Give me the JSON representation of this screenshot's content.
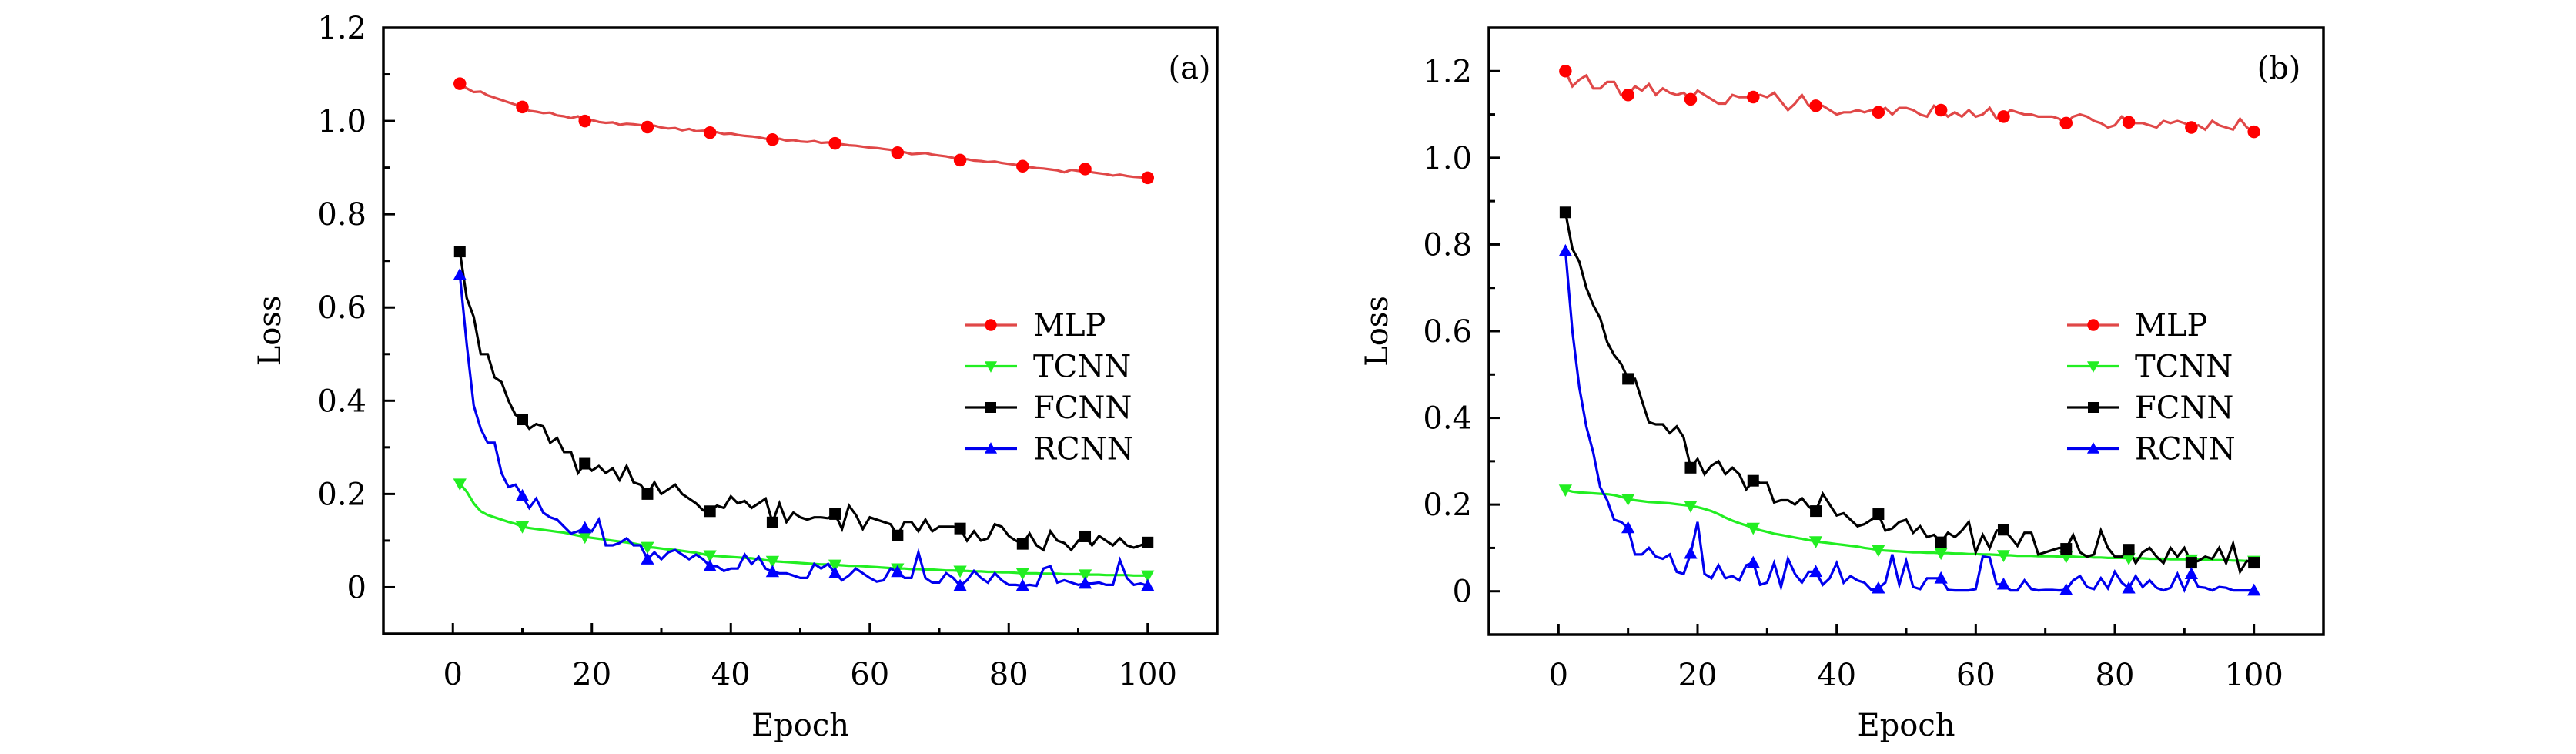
{
  "chart_data": [
    {
      "type": "line",
      "panel_label": "(a)",
      "title": "",
      "xlabel": "Epoch",
      "ylabel": "Loss",
      "xlim": [
        -10,
        110
      ],
      "ylim": [
        -0.1,
        1.2
      ],
      "xticks": [
        0,
        20,
        40,
        60,
        80,
        100
      ],
      "xtick_labels": [
        "0",
        "20",
        "40",
        "60",
        "80",
        "100"
      ],
      "xminor": [
        10,
        30,
        50,
        70,
        90
      ],
      "yticks": [
        0,
        0.2,
        0.4,
        0.6,
        0.8,
        1.0,
        1.2
      ],
      "ytick_labels": [
        "0",
        "0.2",
        "0.4",
        "0.6",
        "0.8",
        "1.0",
        "1.2"
      ],
      "yminor": [
        0.1,
        0.3,
        0.5,
        0.7,
        0.9,
        1.1
      ],
      "grid": false,
      "legend_position": "center-right",
      "marker_every": 9,
      "x_start": 1,
      "series": [
        {
          "name": "MLP",
          "line_color": "#e04848",
          "marker_color": "#ff0000",
          "marker": "circle",
          "values": [
            1.08,
            1.07,
            1.062,
            1.063,
            1.055,
            1.05,
            1.045,
            1.04,
            1.035,
            1.03,
            1.022,
            1.02,
            1.017,
            1.018,
            1.012,
            1.01,
            1.006,
            1.01,
            1.0,
            1.002,
            0.998,
            0.996,
            0.997,
            0.992,
            0.994,
            0.993,
            0.991,
            0.987,
            0.99,
            0.986,
            0.984,
            0.985,
            0.98,
            0.983,
            0.978,
            0.979,
            0.975,
            0.976,
            0.972,
            0.973,
            0.97,
            0.968,
            0.967,
            0.965,
            0.962,
            0.96,
            0.962,
            0.958,
            0.959,
            0.956,
            0.955,
            0.957,
            0.953,
            0.954,
            0.952,
            0.95,
            0.948,
            0.947,
            0.945,
            0.943,
            0.942,
            0.94,
            0.938,
            0.932,
            0.933,
            0.929,
            0.93,
            0.931,
            0.928,
            0.926,
            0.924,
            0.921,
            0.916,
            0.918,
            0.915,
            0.914,
            0.912,
            0.913,
            0.91,
            0.908,
            0.906,
            0.903,
            0.901,
            0.899,
            0.898,
            0.896,
            0.894,
            0.89,
            0.895,
            0.893,
            0.897,
            0.89,
            0.888,
            0.886,
            0.883,
            0.885,
            0.882,
            0.88,
            0.879,
            0.878
          ]
        },
        {
          "name": "TCNN",
          "line_color": "#22ee22",
          "marker_color": "#22ee22",
          "marker": "triangle-down",
          "values": [
            0.222,
            0.205,
            0.18,
            0.163,
            0.155,
            0.15,
            0.145,
            0.14,
            0.136,
            0.13,
            0.127,
            0.125,
            0.123,
            0.121,
            0.119,
            0.117,
            0.114,
            0.111,
            0.108,
            0.106,
            0.104,
            0.102,
            0.1,
            0.098,
            0.096,
            0.094,
            0.091,
            0.086,
            0.085,
            0.083,
            0.081,
            0.08,
            0.078,
            0.076,
            0.074,
            0.071,
            0.068,
            0.067,
            0.066,
            0.065,
            0.064,
            0.063,
            0.062,
            0.06,
            0.058,
            0.056,
            0.055,
            0.054,
            0.053,
            0.052,
            0.051,
            0.05,
            0.049,
            0.049,
            0.048,
            0.047,
            0.046,
            0.046,
            0.045,
            0.044,
            0.043,
            0.042,
            0.041,
            0.04,
            0.04,
            0.039,
            0.039,
            0.038,
            0.038,
            0.037,
            0.036,
            0.036,
            0.035,
            0.035,
            0.034,
            0.034,
            0.033,
            0.033,
            0.032,
            0.032,
            0.031,
            0.03,
            0.03,
            0.03,
            0.029,
            0.029,
            0.029,
            0.028,
            0.028,
            0.028,
            0.027,
            0.027,
            0.027,
            0.026,
            0.026,
            0.026,
            0.026,
            0.025,
            0.025,
            0.025
          ]
        },
        {
          "name": "FCNN",
          "line_color": "#000000",
          "marker_color": "#000000",
          "marker": "square",
          "values": [
            0.72,
            0.62,
            0.58,
            0.5,
            0.5,
            0.45,
            0.44,
            0.4,
            0.37,
            0.36,
            0.34,
            0.35,
            0.345,
            0.31,
            0.32,
            0.29,
            0.29,
            0.245,
            0.265,
            0.25,
            0.26,
            0.245,
            0.255,
            0.23,
            0.26,
            0.225,
            0.22,
            0.2,
            0.225,
            0.2,
            0.21,
            0.22,
            0.2,
            0.19,
            0.18,
            0.165,
            0.163,
            0.175,
            0.17,
            0.195,
            0.18,
            0.185,
            0.17,
            0.18,
            0.19,
            0.139,
            0.18,
            0.14,
            0.16,
            0.15,
            0.145,
            0.15,
            0.15,
            0.148,
            0.157,
            0.125,
            0.175,
            0.155,
            0.125,
            0.15,
            0.145,
            0.14,
            0.135,
            0.111,
            0.14,
            0.14,
            0.12,
            0.145,
            0.12,
            0.13,
            0.13,
            0.13,
            0.126,
            0.1,
            0.12,
            0.1,
            0.105,
            0.135,
            0.13,
            0.11,
            0.1,
            0.093,
            0.115,
            0.09,
            0.08,
            0.12,
            0.1,
            0.095,
            0.08,
            0.1,
            0.109,
            0.09,
            0.11,
            0.1,
            0.09,
            0.105,
            0.09,
            0.085,
            0.09,
            0.096
          ]
        },
        {
          "name": "RCNN",
          "line_color": "#0000ee",
          "marker_color": "#0000ff",
          "marker": "triangle-up",
          "values": [
            0.67,
            0.52,
            0.39,
            0.34,
            0.31,
            0.31,
            0.245,
            0.215,
            0.22,
            0.196,
            0.17,
            0.19,
            0.16,
            0.15,
            0.145,
            0.13,
            0.115,
            0.12,
            0.127,
            0.12,
            0.145,
            0.09,
            0.09,
            0.095,
            0.105,
            0.09,
            0.09,
            0.06,
            0.075,
            0.06,
            0.075,
            0.08,
            0.07,
            0.06,
            0.07,
            0.06,
            0.045,
            0.045,
            0.035,
            0.04,
            0.04,
            0.07,
            0.05,
            0.065,
            0.04,
            0.033,
            0.03,
            0.03,
            0.025,
            0.02,
            0.02,
            0.05,
            0.04,
            0.05,
            0.03,
            0.015,
            0.025,
            0.04,
            0.03,
            0.02,
            0.012,
            0.015,
            0.04,
            0.033,
            0.02,
            0.02,
            0.075,
            0.02,
            0.01,
            0.01,
            0.03,
            0.02,
            0.003,
            0.015,
            0.035,
            0.02,
            0.01,
            0.03,
            0.015,
            0.005,
            0.005,
            0.003,
            0.005,
            0.003,
            0.04,
            0.045,
            0.01,
            0.015,
            0.01,
            0.005,
            0.008,
            0.008,
            0.01,
            0.005,
            0.005,
            0.058,
            0.02,
            0.005,
            0.008,
            0.003
          ]
        }
      ]
    },
    {
      "type": "line",
      "panel_label": "(b)",
      "title": "",
      "xlabel": "Epoch",
      "ylabel": "Loss",
      "xlim": [
        -10,
        110
      ],
      "ylim": [
        -0.1,
        1.3
      ],
      "xticks": [
        0,
        20,
        40,
        60,
        80,
        100
      ],
      "xtick_labels": [
        "0",
        "20",
        "40",
        "60",
        "80",
        "100"
      ],
      "xminor": [
        10,
        30,
        50,
        70,
        90
      ],
      "yticks": [
        0,
        0.2,
        0.4,
        0.6,
        0.8,
        1.0,
        1.2
      ],
      "ytick_labels": [
        "0",
        "0.2",
        "0.4",
        "0.6",
        "0.8",
        "1.0",
        "1.2"
      ],
      "yminor": [
        0.1,
        0.3,
        0.5,
        0.7,
        0.9,
        1.1
      ],
      "grid": false,
      "legend_position": "center-right",
      "marker_every": 9,
      "x_start": 1,
      "series": [
        {
          "name": "MLP",
          "line_color": "#e04848",
          "marker_color": "#ff0000",
          "marker": "circle",
          "values": [
            1.2,
            1.165,
            1.18,
            1.19,
            1.16,
            1.16,
            1.175,
            1.175,
            1.145,
            1.145,
            1.165,
            1.155,
            1.17,
            1.145,
            1.16,
            1.15,
            1.145,
            1.15,
            1.135,
            1.155,
            1.145,
            1.135,
            1.125,
            1.125,
            1.145,
            1.14,
            1.14,
            1.14,
            1.145,
            1.14,
            1.15,
            1.13,
            1.11,
            1.125,
            1.145,
            1.12,
            1.12,
            1.12,
            1.11,
            1.1,
            1.105,
            1.105,
            1.11,
            1.105,
            1.11,
            1.105,
            1.115,
            1.1,
            1.115,
            1.115,
            1.11,
            1.1,
            1.095,
            1.12,
            1.11,
            1.095,
            1.105,
            1.095,
            1.11,
            1.095,
            1.1,
            1.115,
            1.09,
            1.095,
            1.11,
            1.105,
            1.1,
            1.1,
            1.095,
            1.095,
            1.095,
            1.09,
            1.08,
            1.095,
            1.1,
            1.095,
            1.085,
            1.08,
            1.07,
            1.075,
            1.095,
            1.082,
            1.08,
            1.08,
            1.075,
            1.07,
            1.085,
            1.08,
            1.085,
            1.08,
            1.07,
            1.075,
            1.065,
            1.085,
            1.075,
            1.07,
            1.065,
            1.09,
            1.07,
            1.06
          ]
        },
        {
          "name": "TCNN",
          "line_color": "#22ee22",
          "marker_color": "#22ee22",
          "marker": "triangle-down",
          "values": [
            0.234,
            0.23,
            0.228,
            0.227,
            0.226,
            0.225,
            0.224,
            0.222,
            0.218,
            0.213,
            0.21,
            0.208,
            0.206,
            0.205,
            0.204,
            0.203,
            0.201,
            0.199,
            0.197,
            0.194,
            0.19,
            0.185,
            0.178,
            0.17,
            0.163,
            0.157,
            0.152,
            0.146,
            0.141,
            0.137,
            0.133,
            0.13,
            0.127,
            0.124,
            0.121,
            0.118,
            0.115,
            0.113,
            0.111,
            0.109,
            0.107,
            0.105,
            0.103,
            0.1,
            0.098,
            0.095,
            0.094,
            0.093,
            0.092,
            0.091,
            0.09,
            0.09,
            0.089,
            0.089,
            0.088,
            0.088,
            0.087,
            0.087,
            0.086,
            0.086,
            0.085,
            0.085,
            0.084,
            0.083,
            0.083,
            0.082,
            0.082,
            0.082,
            0.081,
            0.081,
            0.081,
            0.08,
            0.08,
            0.08,
            0.079,
            0.079,
            0.078,
            0.078,
            0.077,
            0.077,
            0.077,
            0.076,
            0.076,
            0.076,
            0.075,
            0.075,
            0.075,
            0.074,
            0.074,
            0.074,
            0.073,
            0.073,
            0.073,
            0.072,
            0.072,
            0.072,
            0.071,
            0.071,
            0.07,
            0.07
          ]
        },
        {
          "name": "FCNN",
          "line_color": "#000000",
          "marker_color": "#000000",
          "marker": "square",
          "values": [
            0.874,
            0.79,
            0.76,
            0.7,
            0.66,
            0.63,
            0.575,
            0.545,
            0.525,
            0.49,
            0.49,
            0.44,
            0.39,
            0.385,
            0.385,
            0.365,
            0.38,
            0.355,
            0.285,
            0.305,
            0.27,
            0.29,
            0.3,
            0.27,
            0.285,
            0.27,
            0.235,
            0.255,
            0.25,
            0.25,
            0.205,
            0.21,
            0.21,
            0.2,
            0.215,
            0.195,
            0.185,
            0.225,
            0.2,
            0.175,
            0.18,
            0.165,
            0.15,
            0.155,
            0.165,
            0.178,
            0.14,
            0.145,
            0.16,
            0.165,
            0.135,
            0.15,
            0.125,
            0.13,
            0.113,
            0.135,
            0.125,
            0.14,
            0.16,
            0.09,
            0.13,
            0.1,
            0.14,
            0.142,
            0.125,
            0.105,
            0.135,
            0.135,
            0.085,
            0.09,
            0.095,
            0.1,
            0.098,
            0.13,
            0.09,
            0.08,
            0.085,
            0.14,
            0.1,
            0.08,
            0.08,
            0.096,
            0.065,
            0.09,
            0.1,
            0.08,
            0.065,
            0.1,
            0.08,
            0.1,
            0.066,
            0.07,
            0.08,
            0.075,
            0.1,
            0.065,
            0.11,
            0.045,
            0.07,
            0.066
          ]
        },
        {
          "name": "RCNN",
          "line_color": "#0000ee",
          "marker_color": "#0000ff",
          "marker": "triangle-up",
          "values": [
            0.785,
            0.6,
            0.47,
            0.38,
            0.32,
            0.24,
            0.21,
            0.165,
            0.16,
            0.146,
            0.085,
            0.085,
            0.1,
            0.08,
            0.075,
            0.085,
            0.045,
            0.04,
            0.087,
            0.16,
            0.04,
            0.03,
            0.06,
            0.03,
            0.035,
            0.025,
            0.06,
            0.066,
            0.015,
            0.02,
            0.065,
            0.01,
            0.075,
            0.04,
            0.02,
            0.045,
            0.045,
            0.015,
            0.03,
            0.065,
            0.02,
            0.035,
            0.025,
            0.02,
            0.003,
            0.007,
            0.02,
            0.085,
            0.015,
            0.07,
            0.01,
            0.005,
            0.03,
            0.03,
            0.03,
            0.003,
            0.002,
            0.002,
            0.002,
            0.005,
            0.08,
            0.078,
            0.016,
            0.016,
            0.002,
            0.002,
            0.025,
            0.005,
            0.002,
            0.003,
            0.003,
            0.002,
            0.003,
            0.025,
            0.035,
            0.01,
            0.005,
            0.03,
            0.007,
            0.045,
            0.02,
            0.007,
            0.035,
            0.01,
            0.025,
            0.008,
            0.002,
            0.008,
            0.04,
            0.003,
            0.04,
            0.01,
            0.008,
            0.002,
            0.01,
            0.008,
            0.002,
            0.002,
            0.002,
            0.002
          ]
        }
      ]
    }
  ]
}
